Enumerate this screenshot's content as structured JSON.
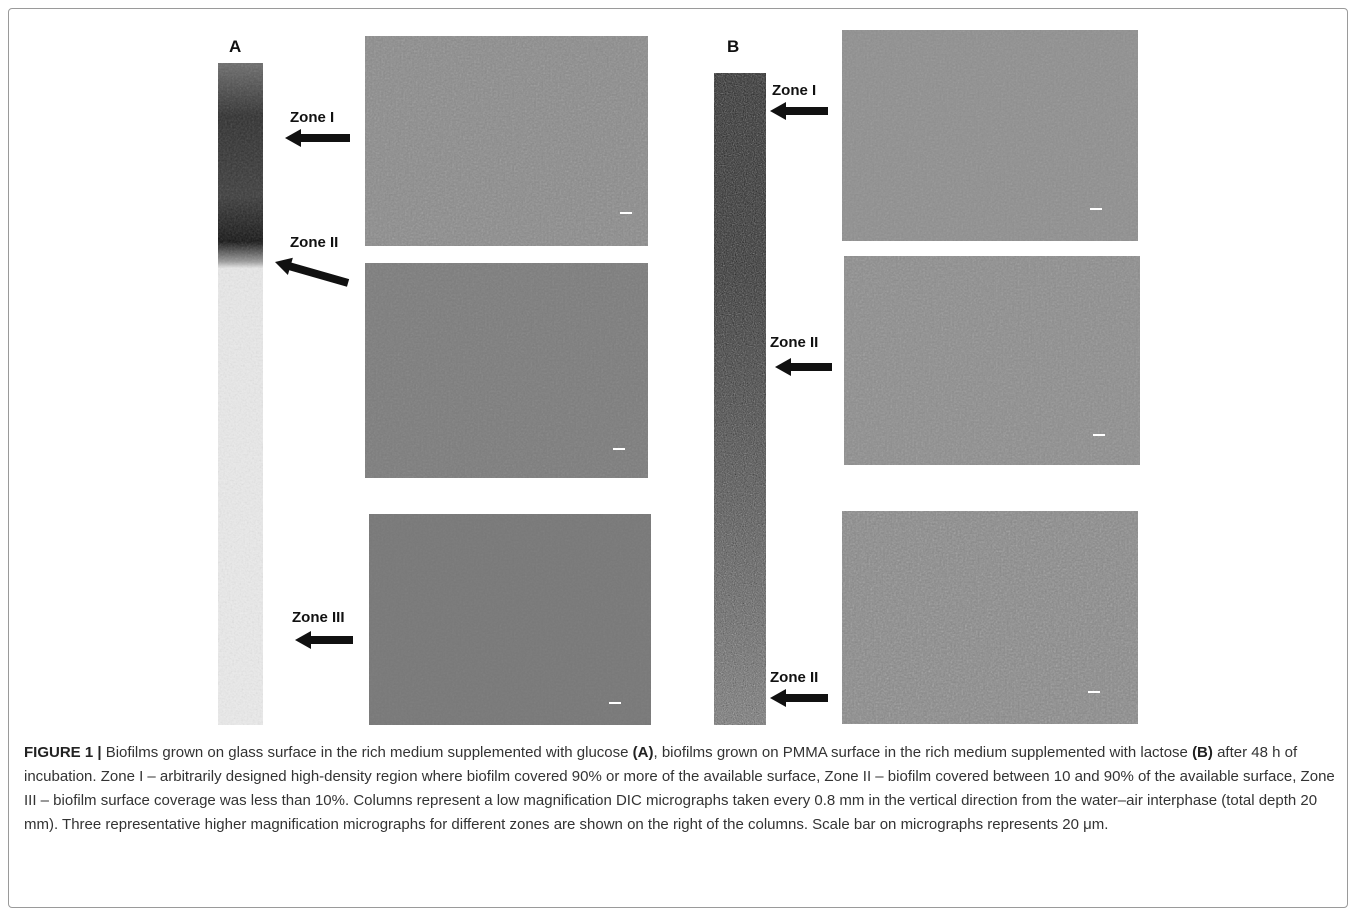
{
  "figure": {
    "panels": [
      {
        "label": "A",
        "zones": [
          "Zone I",
          "Zone II",
          "Zone III"
        ]
      },
      {
        "label": "B",
        "zones": [
          "Zone I",
          "Zone II",
          "Zone II"
        ]
      }
    ],
    "caption": {
      "label": "FIGURE 1 |",
      "segments": [
        "Biofilms grown on glass surface in the rich medium supplemented with glucose",
        "(A)",
        ", biofilms grown on PMMA surface in the rich medium supplemented with lactose",
        "(B)",
        "after 48 h of incubation. Zone I – arbitrarily designed high-density region where biofilm covered 90% or more of the available surface, Zone II – biofilm covered between 10 and 90% of the available surface, Zone III – biofilm surface coverage was less than 10%. Columns represent a low magnification DIC micrographs taken every 0.8 mm in the vertical direction from the water–air interphase (total depth 20 mm). Three representative higher magnification micrographs for different zones are shown on the right of the columns. Scale bar on micrographs represents 20 μm."
      ]
    }
  }
}
